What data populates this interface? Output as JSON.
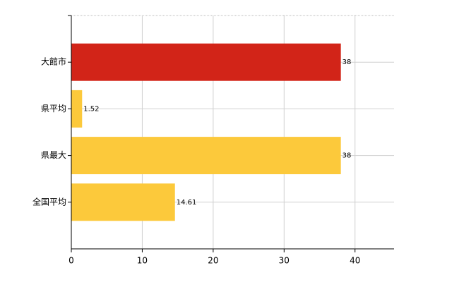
{
  "chart_data": {
    "type": "barh",
    "categories": [
      "大館市",
      "県平均",
      "県最大",
      "全国平均"
    ],
    "values": [
      38,
      1.52,
      38,
      14.61
    ],
    "colors": [
      "#d22418",
      "#fcc93b",
      "#fcc93b",
      "#fcc93b"
    ],
    "xlim": [
      0,
      45.5
    ],
    "xticks": [
      0,
      10,
      20,
      30,
      40
    ],
    "grid": true
  }
}
